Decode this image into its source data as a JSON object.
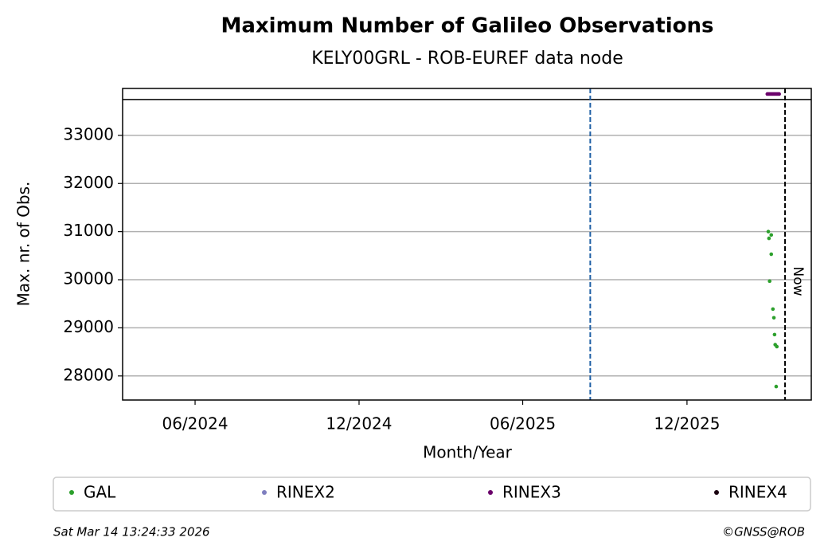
{
  "chart_data": {
    "type": "scatter",
    "title": "Maximum Number of Galileo Observations",
    "subtitle": "KELY00GRL - ROB-EUREF data node",
    "xlabel": "Month/Year",
    "ylabel": "Max. nr. of Obs.",
    "xlim": [
      2024.194,
      2026.294
    ],
    "ylim": [
      27500,
      33975
    ],
    "xticks": [
      {
        "value": 2024.415,
        "label": "06/2024"
      },
      {
        "value": 2024.915,
        "label": "12/2024"
      },
      {
        "value": 2025.414,
        "label": "06/2025"
      },
      {
        "value": 2025.915,
        "label": "12/2025"
      }
    ],
    "yticks": [
      28000,
      29000,
      30000,
      31000,
      32000,
      33000
    ],
    "grid": true,
    "hline": {
      "value": 33745,
      "color": "#000000"
    },
    "vlines": [
      {
        "x": 2025.62,
        "color": "#1f5fa5"
      },
      {
        "x": 2026.214,
        "color": "#000000",
        "label": "Now"
      }
    ],
    "series": [
      {
        "name": "GAL",
        "color": "#2ca02c",
        "x": [
          2026.163,
          2026.165,
          2026.172,
          2026.172,
          2026.167,
          2026.177,
          2026.18,
          2026.182,
          2026.184,
          2026.189,
          2026.187
        ],
        "values": [
          31000,
          30860,
          30930,
          30530,
          29970,
          29390,
          29210,
          28860,
          28650,
          28610,
          27780
        ]
      },
      {
        "name": "RINEX2",
        "color": "#7f7fbf",
        "x": [],
        "values": []
      },
      {
        "name": "RINEX3",
        "color": "#6a006a",
        "x": [
          2026.16,
          2026.164,
          2026.168,
          2026.172,
          2026.176,
          2026.18,
          2026.184,
          2026.188,
          2026.192,
          2026.196
        ],
        "values": [
          33860,
          33860,
          33860,
          33860,
          33860,
          33860,
          33860,
          33860,
          33860,
          33860
        ]
      },
      {
        "name": "RINEX4",
        "color": "#1a0010",
        "x": [],
        "values": []
      }
    ]
  },
  "footer": {
    "timestamp": "Sat Mar 14 13:24:33 2026",
    "credit": "©GNSS@ROB"
  }
}
